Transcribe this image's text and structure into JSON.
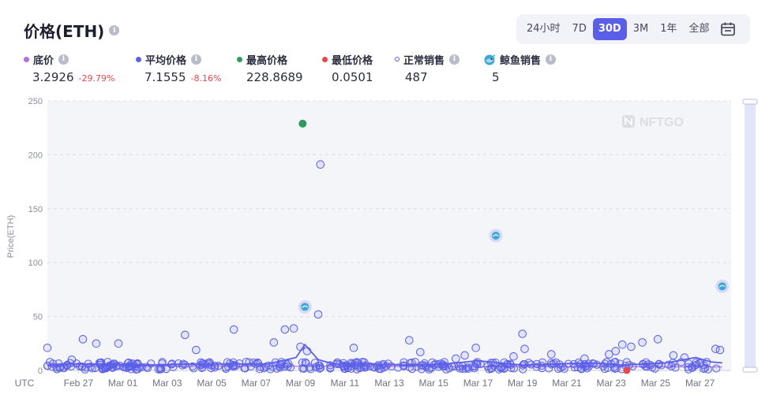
{
  "header": {
    "title": "价格(ETH)"
  },
  "range_tabs": [
    {
      "label": "24小时",
      "active": false
    },
    {
      "label": "7D",
      "active": false
    },
    {
      "label": "30D",
      "active": true
    },
    {
      "label": "3M",
      "active": false
    },
    {
      "label": "1年",
      "active": false
    },
    {
      "label": "全部",
      "active": false
    }
  ],
  "stats": [
    {
      "label": "底价",
      "value": "3.2926",
      "change": "-29.79%",
      "color": "#b46ee0",
      "marker": "dot"
    },
    {
      "label": "平均价格",
      "value": "7.1555",
      "change": "-8.16%",
      "color": "#5b5fe8",
      "marker": "dot"
    },
    {
      "label": "最高价格",
      "value": "228.8689",
      "change": "",
      "color": "#2e9a5e",
      "marker": "dot"
    },
    {
      "label": "最低价格",
      "value": "0.0501",
      "change": "",
      "color": "#e5484d",
      "marker": "dot"
    },
    {
      "label": "正常销售",
      "value": "487",
      "change": "",
      "color": "#5b5fe8",
      "marker": "ring"
    },
    {
      "label": "鲸鱼销售",
      "value": "5",
      "change": "",
      "color": "#3aa7d6",
      "marker": "whale"
    }
  ],
  "watermark": "NFTGO",
  "colors": {
    "accent": "#5b5fe8",
    "high": "#2e9a5e",
    "low": "#e5484d",
    "floor": "#b46ee0",
    "whale": "#3aa7d6"
  },
  "chart_data": {
    "type": "scatter",
    "ylabel": "Price(ETH)",
    "timezone_label": "UTC",
    "ylim": [
      0,
      250
    ],
    "yticks": [
      0,
      50,
      100,
      150,
      200,
      250
    ],
    "xlim": [
      25.6,
      56.4
    ],
    "xticks": [
      {
        "x": 27,
        "label": "Feb 27"
      },
      {
        "x": 29,
        "label": "Mar 01"
      },
      {
        "x": 31,
        "label": "Mar 03"
      },
      {
        "x": 33,
        "label": "Mar 05"
      },
      {
        "x": 35,
        "label": "Mar 07"
      },
      {
        "x": 37,
        "label": "Mar 09"
      },
      {
        "x": 39,
        "label": "Mar 11"
      },
      {
        "x": 41,
        "label": "Mar 13"
      },
      {
        "x": 43,
        "label": "Mar 15"
      },
      {
        "x": 45,
        "label": "Mar 17"
      },
      {
        "x": 47,
        "label": "Mar 19"
      },
      {
        "x": 49,
        "label": "Mar 21"
      },
      {
        "x": 51,
        "label": "Mar 23"
      },
      {
        "x": 53,
        "label": "Mar 25"
      },
      {
        "x": 55,
        "label": "Mar 27"
      }
    ],
    "grid": true,
    "highest_sale": {
      "x": 37.1,
      "y": 228.9
    },
    "lowest_sale": {
      "x": 51.7,
      "y": 0.05
    },
    "whale_sales": [
      {
        "x": 37.2,
        "y": 59
      },
      {
        "x": 45.8,
        "y": 125
      },
      {
        "x": 56.0,
        "y": 78
      }
    ],
    "notable_sales": [
      {
        "x": 25.6,
        "y": 21
      },
      {
        "x": 26.7,
        "y": 10
      },
      {
        "x": 27.2,
        "y": 29
      },
      {
        "x": 27.3,
        "y": 1
      },
      {
        "x": 27.8,
        "y": 25
      },
      {
        "x": 28.8,
        "y": 25
      },
      {
        "x": 29.6,
        "y": 1
      },
      {
        "x": 31.8,
        "y": 33
      },
      {
        "x": 32.3,
        "y": 19
      },
      {
        "x": 34.0,
        "y": 38
      },
      {
        "x": 35.0,
        "y": 6
      },
      {
        "x": 35.8,
        "y": 26
      },
      {
        "x": 36.3,
        "y": 38
      },
      {
        "x": 36.7,
        "y": 39
      },
      {
        "x": 37.0,
        "y": 22
      },
      {
        "x": 37.3,
        "y": 18
      },
      {
        "x": 37.9,
        "y": 191
      },
      {
        "x": 37.8,
        "y": 52
      },
      {
        "x": 39.4,
        "y": 21
      },
      {
        "x": 41.9,
        "y": 28
      },
      {
        "x": 42.4,
        "y": 17
      },
      {
        "x": 42.8,
        "y": 1
      },
      {
        "x": 44.0,
        "y": 11
      },
      {
        "x": 44.4,
        "y": 14
      },
      {
        "x": 44.9,
        "y": 21
      },
      {
        "x": 46.6,
        "y": 13
      },
      {
        "x": 47.1,
        "y": 20
      },
      {
        "x": 47.0,
        "y": 34
      },
      {
        "x": 48.3,
        "y": 15
      },
      {
        "x": 49.8,
        "y": 11
      },
      {
        "x": 50.9,
        "y": 15
      },
      {
        "x": 51.2,
        "y": 18
      },
      {
        "x": 51.5,
        "y": 24
      },
      {
        "x": 51.9,
        "y": 22
      },
      {
        "x": 52.4,
        "y": 26
      },
      {
        "x": 53.1,
        "y": 29
      },
      {
        "x": 53.8,
        "y": 14
      },
      {
        "x": 54.3,
        "y": 12
      },
      {
        "x": 55.7,
        "y": 20
      },
      {
        "x": 55.9,
        "y": 19
      }
    ],
    "avg_price_line": [
      {
        "x": 25.6,
        "y": 5
      },
      {
        "x": 26.5,
        "y": 6
      },
      {
        "x": 28.0,
        "y": 6
      },
      {
        "x": 30.0,
        "y": 5
      },
      {
        "x": 32.0,
        "y": 6
      },
      {
        "x": 34.0,
        "y": 6
      },
      {
        "x": 35.5,
        "y": 6
      },
      {
        "x": 36.8,
        "y": 12
      },
      {
        "x": 37.2,
        "y": 24
      },
      {
        "x": 37.8,
        "y": 10
      },
      {
        "x": 38.5,
        "y": 6
      },
      {
        "x": 40.0,
        "y": 6
      },
      {
        "x": 42.0,
        "y": 5
      },
      {
        "x": 43.5,
        "y": 6
      },
      {
        "x": 45.0,
        "y": 9
      },
      {
        "x": 46.0,
        "y": 7
      },
      {
        "x": 47.0,
        "y": 5
      },
      {
        "x": 48.5,
        "y": 6
      },
      {
        "x": 50.0,
        "y": 7
      },
      {
        "x": 51.5,
        "y": 5
      },
      {
        "x": 52.5,
        "y": 6
      },
      {
        "x": 53.5,
        "y": 7
      },
      {
        "x": 54.8,
        "y": 12
      },
      {
        "x": 55.5,
        "y": 8
      },
      {
        "x": 56.0,
        "y": 7
      }
    ],
    "floor_price_line": [
      {
        "x": 25.6,
        "y": 4
      },
      {
        "x": 30.0,
        "y": 4
      },
      {
        "x": 35.0,
        "y": 4
      },
      {
        "x": 40.0,
        "y": 4
      },
      {
        "x": 45.0,
        "y": 3.5
      },
      {
        "x": 50.0,
        "y": 3.5
      },
      {
        "x": 56.0,
        "y": 3.3
      }
    ]
  }
}
